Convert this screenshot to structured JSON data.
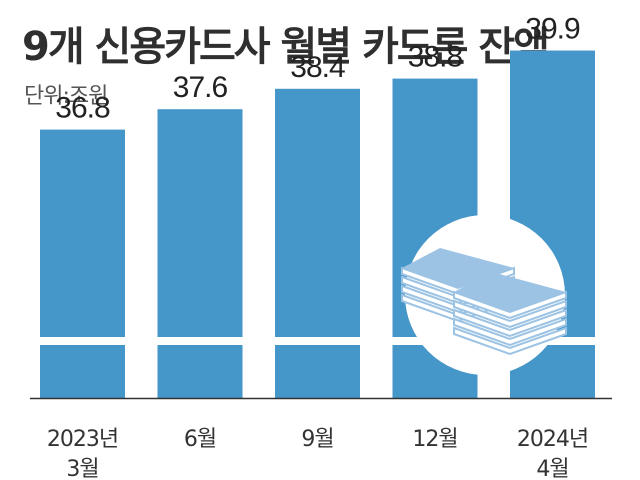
{
  "chart_data": {
    "type": "bar",
    "title": "9개 신용카드사 월별 카드론 잔액",
    "unit_label": "단위:조원",
    "categories": [
      [
        "2023년",
        "3월"
      ],
      [
        "6월"
      ],
      [
        "9월"
      ],
      [
        "12월"
      ],
      [
        "2024년",
        "4월"
      ]
    ],
    "values": [
      36.8,
      37.6,
      38.4,
      38.8,
      39.9
    ],
    "value_labels": [
      "36.8",
      "37.6",
      "38.4",
      "38.8",
      "39.9"
    ],
    "xlabel": "",
    "ylabel": "",
    "grid": false,
    "colors": {
      "bar": "#4596c9",
      "decor": "#9cc3e4"
    },
    "icon": "money-stack-icon"
  }
}
